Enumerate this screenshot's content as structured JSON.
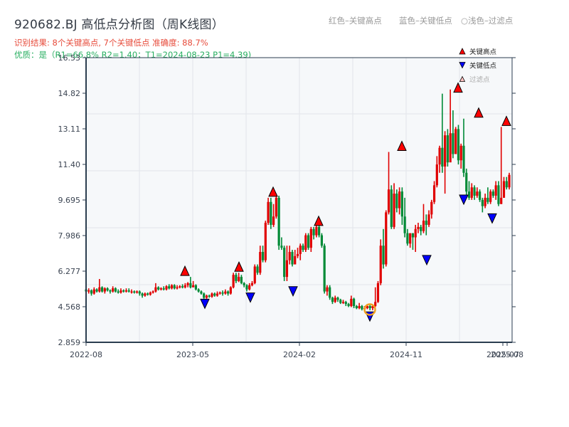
{
  "header": {
    "title": "920682.BJ 高低点分析图（周K线图）",
    "result_line": "识别结果: 8个关键高点, 7个关键低点  准确度: 88.7%",
    "quality_line": "优质：是（R1=66.8%  R2=1.40；T1=2024-08-23 P1=4.39)",
    "hint_red": "红色–关键高点",
    "hint_blue": "蓝色–关键低点",
    "hint_light": "○浅色–过滤点"
  },
  "legend": {
    "items": [
      {
        "label": "关键高点",
        "symbol": "triangle-up",
        "color": "#ff0000"
      },
      {
        "label": "关键低点",
        "symbol": "triangle-down",
        "color": "#0000ff"
      },
      {
        "label": "过滤点",
        "symbol": "triangle-up-light",
        "color": "#ffc0c0"
      }
    ]
  },
  "colors": {
    "up": "#e00000",
    "down": "#008a36",
    "high_marker": "#ff0000",
    "low_marker": "#0000ff",
    "highlight_ring": "#f0a020",
    "plot_bg": "#f6f8fa",
    "grid": "#e2e5ea",
    "axis": "#2c3e50"
  },
  "chart_data": {
    "type": "candlestick",
    "title": "920682.BJ 高低点分析图（周K线图）",
    "xlabel": "",
    "ylabel": "",
    "ylim": [
      2.859,
      16.53
    ],
    "yticks": [
      "2.859",
      "4.568",
      "6.277",
      "7.986",
      "9.695",
      "11.40",
      "13.11",
      "14.82",
      "16.53"
    ],
    "xticks": [
      "2022-08",
      "2023-05",
      "2024-02",
      "2024-11",
      "2025-07",
      "2025-08"
    ],
    "grid": true,
    "legend_position": "top-right",
    "key_highs": [
      {
        "date": "2023-04",
        "price": 6.0
      },
      {
        "date": "2023-09",
        "price": 6.2
      },
      {
        "date": "2023-12",
        "price": 9.8
      },
      {
        "date": "2024-03",
        "price": 8.4
      },
      {
        "date": "2024-11",
        "price": 12.0
      },
      {
        "date": "2025-03",
        "price": 14.8
      },
      {
        "date": "2025-04",
        "price": 13.6
      },
      {
        "date": "2025-07",
        "price": 13.2
      }
    ],
    "key_lows": [
      {
        "date": "2023-06",
        "price": 5.0
      },
      {
        "date": "2023-10",
        "price": 5.3
      },
      {
        "date": "2024-01",
        "price": 5.6
      },
      {
        "date": "2024-08-23",
        "price": 4.39
      },
      {
        "date": "2024-12",
        "price": 7.1
      },
      {
        "date": "2025-03",
        "price": 10.0
      },
      {
        "date": "2025-06",
        "price": 9.1
      }
    ],
    "highlighted_point": {
      "date": "2024-08-23",
      "price": 4.39
    },
    "candles_ohlc_weekly": [
      [
        5.4,
        5.3,
        5.5,
        5.2
      ],
      [
        5.3,
        5.35,
        5.45,
        5.2
      ],
      [
        5.35,
        5.2,
        5.4,
        5.1
      ],
      [
        5.2,
        5.4,
        5.5,
        5.15
      ],
      [
        5.4,
        5.3,
        5.45,
        5.25
      ],
      [
        5.3,
        5.5,
        5.9,
        5.25
      ],
      [
        5.5,
        5.3,
        5.55,
        5.25
      ],
      [
        5.3,
        5.45,
        5.5,
        5.2
      ],
      [
        5.45,
        5.35,
        5.5,
        5.3
      ],
      [
        5.35,
        5.3,
        5.4,
        5.2
      ],
      [
        5.3,
        5.45,
        5.55,
        5.25
      ],
      [
        5.45,
        5.3,
        5.5,
        5.25
      ],
      [
        5.3,
        5.25,
        5.4,
        5.2
      ],
      [
        5.25,
        5.35,
        5.45,
        5.2
      ],
      [
        5.35,
        5.3,
        5.4,
        5.25
      ],
      [
        5.3,
        5.35,
        5.45,
        5.25
      ],
      [
        5.35,
        5.3,
        5.45,
        5.25
      ],
      [
        5.3,
        5.3,
        5.4,
        5.2
      ],
      [
        5.3,
        5.25,
        5.35,
        5.2
      ],
      [
        5.25,
        5.3,
        5.35,
        5.2
      ],
      [
        5.3,
        5.2,
        5.35,
        5.1
      ],
      [
        5.2,
        5.1,
        5.25,
        5.0
      ],
      [
        5.1,
        5.2,
        5.25,
        5.05
      ],
      [
        5.2,
        5.15,
        5.25,
        5.1
      ],
      [
        5.15,
        5.25,
        5.3,
        5.1
      ],
      [
        5.25,
        5.3,
        5.35,
        5.2
      ],
      [
        5.3,
        5.5,
        5.7,
        5.25
      ],
      [
        5.5,
        5.4,
        5.55,
        5.35
      ],
      [
        5.4,
        5.45,
        5.5,
        5.35
      ],
      [
        5.45,
        5.4,
        5.55,
        5.35
      ],
      [
        5.4,
        5.55,
        5.6,
        5.35
      ],
      [
        5.55,
        5.45,
        5.65,
        5.4
      ],
      [
        5.45,
        5.6,
        5.65,
        5.4
      ],
      [
        5.6,
        5.45,
        5.65,
        5.4
      ],
      [
        5.45,
        5.5,
        5.6,
        5.4
      ],
      [
        5.5,
        5.55,
        5.6,
        5.45
      ],
      [
        5.55,
        5.5,
        5.65,
        5.45
      ],
      [
        5.5,
        5.6,
        5.7,
        5.45
      ],
      [
        5.6,
        5.7,
        5.75,
        5.5
      ],
      [
        5.7,
        5.5,
        6.0,
        5.45
      ],
      [
        5.5,
        5.6,
        5.8,
        5.5
      ],
      [
        5.6,
        5.4,
        5.65,
        5.35
      ],
      [
        5.4,
        5.3,
        5.45,
        5.25
      ],
      [
        5.3,
        5.2,
        5.35,
        5.15
      ],
      [
        5.2,
        5.0,
        5.25,
        4.95
      ],
      [
        5.0,
        5.1,
        5.15,
        4.95
      ],
      [
        5.1,
        5.05,
        5.15,
        5.0
      ],
      [
        5.05,
        5.2,
        5.25,
        5.0
      ],
      [
        5.2,
        5.1,
        5.25,
        5.05
      ],
      [
        5.1,
        5.2,
        5.3,
        5.05
      ],
      [
        5.2,
        5.25,
        5.3,
        5.15
      ],
      [
        5.25,
        5.2,
        5.35,
        5.1
      ],
      [
        5.2,
        5.3,
        5.4,
        5.15
      ],
      [
        5.3,
        5.2,
        5.35,
        5.1
      ],
      [
        5.2,
        5.5,
        5.55,
        5.15
      ],
      [
        5.5,
        6.1,
        6.2,
        5.45
      ],
      [
        6.1,
        5.8,
        6.2,
        5.7
      ],
      [
        5.8,
        6.0,
        6.2,
        5.75
      ],
      [
        6.0,
        5.7,
        6.1,
        5.65
      ],
      [
        5.7,
        5.6,
        5.75,
        5.5
      ],
      [
        5.6,
        5.4,
        5.65,
        5.3
      ],
      [
        5.4,
        5.6,
        5.7,
        5.35
      ],
      [
        5.6,
        5.7,
        5.8,
        5.55
      ],
      [
        5.7,
        6.5,
        6.6,
        5.65
      ],
      [
        6.5,
        6.2,
        6.6,
        6.1
      ],
      [
        6.2,
        7.2,
        7.5,
        6.1
      ],
      [
        7.2,
        6.8,
        7.5,
        6.7
      ],
      [
        6.8,
        8.6,
        8.7,
        6.7
      ],
      [
        8.6,
        9.6,
        9.8,
        8.5
      ],
      [
        9.6,
        8.5,
        9.8,
        8.3
      ],
      [
        8.5,
        8.9,
        9.5,
        8.4
      ],
      [
        8.9,
        9.8,
        10.0,
        8.8
      ],
      [
        9.8,
        7.5,
        9.9,
        7.3
      ],
      [
        7.5,
        7.4,
        7.9,
        7.3
      ],
      [
        7.4,
        6.0,
        7.5,
        5.8
      ],
      [
        6.0,
        6.8,
        7.5,
        5.8
      ],
      [
        6.8,
        7.2,
        7.5,
        6.6
      ],
      [
        7.2,
        6.6,
        7.3,
        6.5
      ],
      [
        6.6,
        7.0,
        7.3,
        6.7
      ],
      [
        7.0,
        7.1,
        7.4,
        6.9
      ],
      [
        7.1,
        7.5,
        7.6,
        6.8
      ],
      [
        7.5,
        7.3,
        7.6,
        7.2
      ],
      [
        7.3,
        8.0,
        8.1,
        7.2
      ],
      [
        8.0,
        7.4,
        8.1,
        7.3
      ],
      [
        7.4,
        8.3,
        8.4,
        7.2
      ],
      [
        8.3,
        8.0,
        8.4,
        7.8
      ],
      [
        8.0,
        8.4,
        8.5,
        7.9
      ],
      [
        8.4,
        8.0,
        8.5,
        7.9
      ],
      [
        8.0,
        7.5,
        8.1,
        7.4
      ],
      [
        7.5,
        5.3,
        7.6,
        5.2
      ],
      [
        5.3,
        5.5,
        5.6,
        5.1
      ],
      [
        5.5,
        5.0,
        5.6,
        4.9
      ],
      [
        5.0,
        4.8,
        5.05,
        4.7
      ],
      [
        4.8,
        5.0,
        5.1,
        4.75
      ],
      [
        5.0,
        4.9,
        5.05,
        4.8
      ],
      [
        4.9,
        4.75,
        4.95,
        4.7
      ],
      [
        4.75,
        4.8,
        4.9,
        4.7
      ],
      [
        4.8,
        4.7,
        4.85,
        4.6
      ],
      [
        4.7,
        4.6,
        4.75,
        4.55
      ],
      [
        4.6,
        4.95,
        5.1,
        4.55
      ],
      [
        4.95,
        4.6,
        5.0,
        4.5
      ],
      [
        4.6,
        4.5,
        4.65,
        4.45
      ],
      [
        4.5,
        4.6,
        4.75,
        4.45
      ],
      [
        4.6,
        4.45,
        4.65,
        4.39
      ],
      [
        4.45,
        4.5,
        4.6,
        4.4
      ],
      [
        4.5,
        4.6,
        4.7,
        4.45
      ],
      [
        4.6,
        4.5,
        4.65,
        4.4
      ],
      [
        4.5,
        4.6,
        4.65,
        4.4
      ],
      [
        4.6,
        4.8,
        5.5,
        4.55
      ],
      [
        4.8,
        5.7,
        5.8,
        4.75
      ],
      [
        5.7,
        7.5,
        7.8,
        5.6
      ],
      [
        7.5,
        6.6,
        8.3,
        6.4
      ],
      [
        6.6,
        9.1,
        9.2,
        6.5
      ],
      [
        9.1,
        10.2,
        12.0,
        9.0
      ],
      [
        10.2,
        8.4,
        10.4,
        8.3
      ],
      [
        8.4,
        10.0,
        10.5,
        8.3
      ],
      [
        10.0,
        9.3,
        10.2,
        9.1
      ],
      [
        9.3,
        10.1,
        10.3,
        9.0
      ],
      [
        10.1,
        8.9,
        10.3,
        8.5
      ],
      [
        8.9,
        8.1,
        9.8,
        7.9
      ],
      [
        8.1,
        7.6,
        8.3,
        7.5
      ],
      [
        7.6,
        8.1,
        8.1,
        7.4
      ],
      [
        8.1,
        7.9,
        8.1,
        7.3
      ],
      [
        7.9,
        8.3,
        8.5,
        7.2
      ],
      [
        8.3,
        8.4,
        8.6,
        8.1
      ],
      [
        8.4,
        8.2,
        8.5,
        8.0
      ],
      [
        8.2,
        8.7,
        9.5,
        8.1
      ],
      [
        8.7,
        8.5,
        9.0,
        8.0
      ],
      [
        8.5,
        9.0,
        9.2,
        8.4
      ],
      [
        9.0,
        9.6,
        9.7,
        8.8
      ],
      [
        9.6,
        10.4,
        10.6,
        9.5
      ],
      [
        10.4,
        11.4,
        11.8,
        10.3
      ],
      [
        11.4,
        12.2,
        12.3,
        11.0
      ],
      [
        12.2,
        11.3,
        14.8,
        11.0
      ],
      [
        11.3,
        12.8,
        13.0,
        10.0
      ],
      [
        12.8,
        11.5,
        13.1,
        11.3
      ],
      [
        11.5,
        12.9,
        15.0,
        11.6
      ],
      [
        12.9,
        11.9,
        14.0,
        11.7
      ],
      [
        11.9,
        13.1,
        13.2,
        11.9
      ],
      [
        13.1,
        11.6,
        13.3,
        11.4
      ],
      [
        11.6,
        12.3,
        12.4,
        11.2
      ],
      [
        12.3,
        11.0,
        13.6,
        10.8
      ],
      [
        11.0,
        10.1,
        11.2,
        9.9
      ],
      [
        10.1,
        9.8,
        10.6,
        9.7
      ],
      [
        9.8,
        10.3,
        10.5,
        9.7
      ],
      [
        10.3,
        9.9,
        10.4,
        9.7
      ],
      [
        9.9,
        10.1,
        10.3,
        9.8
      ],
      [
        10.1,
        9.7,
        10.2,
        9.6
      ],
      [
        9.7,
        9.4,
        9.8,
        9.1
      ],
      [
        9.4,
        9.8,
        10.0,
        9.3
      ],
      [
        9.8,
        9.6,
        10.3,
        9.5
      ],
      [
        9.6,
        10.1,
        10.2,
        9.5
      ],
      [
        10.1,
        9.9,
        10.2,
        9.8
      ],
      [
        9.9,
        10.4,
        10.6,
        9.7
      ],
      [
        10.4,
        9.5,
        10.6,
        9.4
      ],
      [
        9.5,
        9.8,
        13.2,
        9.5
      ],
      [
        9.8,
        10.6,
        10.8,
        9.8
      ],
      [
        10.6,
        10.3,
        10.8,
        10.2
      ],
      [
        10.3,
        10.9,
        11.0,
        10.2
      ]
    ]
  }
}
